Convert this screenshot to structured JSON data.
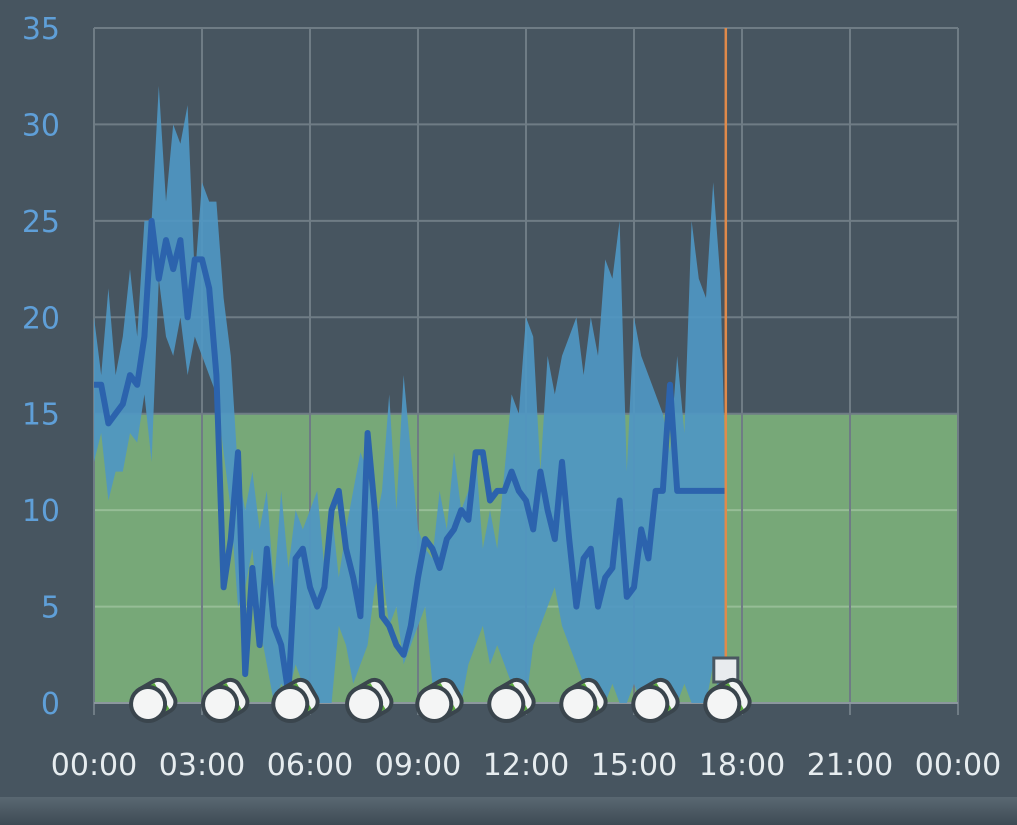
{
  "chart_data": {
    "type": "area",
    "title": "",
    "xlabel": "",
    "ylabel": "",
    "xlim": [
      0,
      24
    ],
    "ylim": [
      0,
      35
    ],
    "x_tick_labels": [
      "00:00",
      "03:00",
      "06:00",
      "09:00",
      "12:00",
      "15:00",
      "18:00",
      "21:00",
      "00:00"
    ],
    "y_tick_labels": [
      "0",
      "5",
      "10",
      "15",
      "20",
      "25",
      "30",
      "35"
    ],
    "grid": true,
    "target_band": {
      "from": 0,
      "to": 15,
      "color": "#77a878"
    },
    "now_marker": {
      "x": 17.55,
      "color": "#e08a4a"
    },
    "colors": {
      "line": "#2c63ad",
      "band": "#4f97c3",
      "grid": "#6f7c85",
      "background": "#475560"
    },
    "series": [
      {
        "role": "range",
        "x": [
          0,
          0.2,
          0.4,
          0.6,
          0.8,
          1.0,
          1.2,
          1.4,
          1.6,
          1.8,
          2.0,
          2.2,
          2.4,
          2.6,
          2.8,
          3.0,
          3.2,
          3.4,
          3.6,
          3.8,
          4.0,
          4.2,
          4.4,
          4.6,
          4.8,
          5.0,
          5.2,
          5.4,
          5.6,
          5.8,
          6.0,
          6.2,
          6.4,
          6.6,
          6.8,
          7.0,
          7.2,
          7.4,
          7.6,
          7.8,
          8.0,
          8.2,
          8.4,
          8.6,
          8.8,
          9.0,
          9.2,
          9.4,
          9.6,
          9.8,
          10.0,
          10.2,
          10.4,
          10.6,
          10.8,
          11.0,
          11.2,
          11.4,
          11.6,
          11.8,
          12.0,
          12.2,
          12.4,
          12.6,
          12.8,
          13.0,
          13.2,
          13.4,
          13.6,
          13.8,
          14.0,
          14.2,
          14.4,
          14.6,
          14.8,
          15.0,
          15.2,
          15.4,
          15.6,
          15.8,
          16.0,
          16.2,
          16.4,
          16.6,
          16.8,
          17.0,
          17.2,
          17.4,
          17.55
        ],
        "low": [
          12.5,
          14,
          10.5,
          12,
          12,
          14,
          13.5,
          16,
          12.5,
          22,
          19,
          18,
          20,
          17,
          19,
          18,
          17,
          16,
          13,
          10,
          5,
          6,
          8,
          4,
          2,
          0,
          1,
          0.5,
          2,
          1,
          0,
          0,
          0,
          0,
          4,
          3,
          1,
          2,
          3,
          6,
          7,
          4,
          5,
          2,
          3,
          4,
          5,
          1,
          0,
          1,
          0.5,
          0,
          2,
          3,
          4,
          2,
          3,
          2,
          1,
          1,
          0,
          3,
          4,
          5,
          6,
          4,
          3,
          2,
          1,
          0,
          0,
          0,
          1,
          0,
          0,
          1,
          0,
          0,
          0,
          0,
          0,
          0,
          1,
          0,
          0,
          0,
          2,
          0,
          0
        ],
        "high": [
          20,
          17,
          21.5,
          17,
          19,
          22.5,
          19,
          25,
          25,
          32,
          26,
          30,
          29,
          31,
          22,
          27,
          26,
          26,
          21,
          18,
          12,
          10,
          12,
          9,
          11,
          6,
          11,
          7,
          10,
          9,
          10,
          11,
          7,
          10,
          6.5,
          9,
          11,
          13,
          12,
          9,
          11,
          16,
          10,
          17,
          13,
          9,
          8,
          7.5,
          11,
          9,
          13,
          10,
          11,
          13,
          8,
          10,
          8,
          12,
          16,
          15,
          20,
          19,
          12,
          18,
          16,
          18,
          19,
          20,
          17,
          20,
          18,
          23,
          22,
          25,
          12,
          20,
          18,
          17,
          16,
          15,
          13,
          18,
          14,
          25,
          22,
          21,
          27,
          22,
          11
        ]
      },
      {
        "role": "median",
        "x": [
          0,
          0.2,
          0.4,
          0.6,
          0.8,
          1.0,
          1.2,
          1.4,
          1.6,
          1.8,
          2.0,
          2.2,
          2.4,
          2.6,
          2.8,
          3.0,
          3.2,
          3.4,
          3.6,
          3.8,
          4.0,
          4.2,
          4.4,
          4.6,
          4.8,
          5.0,
          5.2,
          5.4,
          5.6,
          5.8,
          6.0,
          6.2,
          6.4,
          6.6,
          6.8,
          7.0,
          7.2,
          7.4,
          7.6,
          7.8,
          8.0,
          8.2,
          8.4,
          8.6,
          8.8,
          9.0,
          9.2,
          9.4,
          9.6,
          9.8,
          10.0,
          10.2,
          10.4,
          10.6,
          10.8,
          11.0,
          11.2,
          11.4,
          11.6,
          11.8,
          12.0,
          12.2,
          12.4,
          12.6,
          12.8,
          13.0,
          13.2,
          13.4,
          13.6,
          13.8,
          14.0,
          14.2,
          14.4,
          14.6,
          14.8,
          15.0,
          15.2,
          15.4,
          15.6,
          15.8,
          16.0,
          16.2,
          16.4,
          16.6,
          16.8,
          17.0,
          17.2,
          17.4,
          17.55
        ],
        "values": [
          16.5,
          16.5,
          14.5,
          15,
          15.5,
          17,
          16.5,
          19,
          25,
          22,
          24,
          22.5,
          24,
          20,
          23,
          23,
          21.5,
          17,
          6,
          8.5,
          13,
          1.5,
          7,
          3,
          8,
          4,
          3,
          0.5,
          7.5,
          8,
          6,
          5,
          6,
          10,
          11,
          8,
          6.5,
          4.5,
          14,
          10,
          4.5,
          4,
          3,
          2.5,
          4,
          6.5,
          8.5,
          8,
          7,
          8.5,
          9,
          10,
          9.5,
          13,
          13,
          10.5,
          11,
          11,
          12,
          11,
          10.5,
          9,
          12,
          10,
          8.5,
          12.5,
          8.5,
          5,
          7.5,
          8,
          5,
          6.5,
          7,
          10.5,
          5.5,
          6,
          9,
          7.5,
          11,
          11,
          16.5,
          11,
          11,
          11,
          11,
          11,
          11,
          11,
          11
        ]
      }
    ],
    "events": {
      "kind": "pen-icon",
      "x": [
        1.55,
        3.55,
        5.5,
        7.55,
        9.5,
        11.5,
        13.5,
        15.5,
        17.5
      ],
      "y": [
        0,
        0,
        0,
        0,
        0,
        0,
        0,
        0,
        0
      ]
    }
  }
}
